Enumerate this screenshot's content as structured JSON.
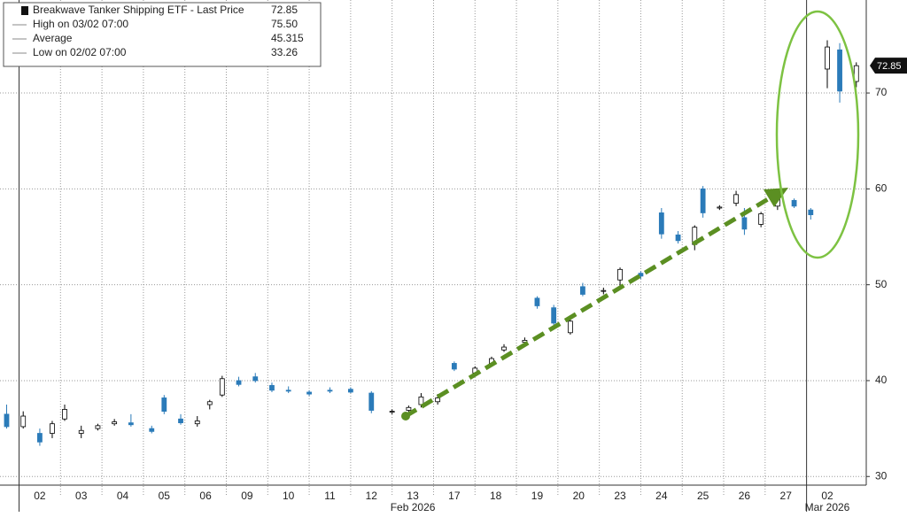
{
  "chart_data": {
    "type": "candlestick",
    "legend": [
      {
        "label": "Breakwave Tanker Shipping ETF - Last Price",
        "value": "72.85"
      },
      {
        "label": "High on 03/02 07:00",
        "value": "75.50"
      },
      {
        "label": "Average",
        "value": "45.315"
      },
      {
        "label": "Low on 02/02 07:00",
        "value": "33.26"
      }
    ],
    "last_price": 72.85,
    "categories": [
      "02",
      "03",
      "04",
      "05",
      "06",
      "09",
      "10",
      "11",
      "12",
      "13",
      "17",
      "18",
      "19",
      "20",
      "23",
      "24",
      "25",
      "26",
      "27",
      "02"
    ],
    "month_labels": [
      {
        "index": 9,
        "label": "Feb 2026"
      },
      {
        "index": 19,
        "label": "Mar 2026"
      }
    ],
    "xlim": [
      -0.96,
      19.94
    ],
    "ylim": [
      29.1,
      79.7
    ],
    "yticks": [
      30,
      40,
      50,
      60,
      70
    ],
    "grid": true,
    "up_color": "#ffffff",
    "down_color": "#2b7bb9",
    "x": [
      -0.8,
      -0.4,
      0.0,
      0.3,
      0.6,
      1.0,
      1.4,
      1.8,
      2.2,
      2.7,
      3.0,
      3.4,
      3.8,
      4.1,
      4.4,
      4.8,
      5.2,
      5.6,
      6.0,
      6.5,
      7.0,
      7.5,
      8.0,
      8.5,
      8.9,
      9.2,
      9.6,
      10.0,
      10.5,
      10.9,
      11.2,
      11.7,
      12.0,
      12.4,
      12.8,
      13.1,
      13.6,
      14.0,
      14.5,
      15.0,
      15.4,
      15.8,
      16.0,
      16.4,
      16.8,
      17.0,
      17.4,
      17.8,
      18.2,
      18.6,
      19.0,
      19.3,
      19.7
    ],
    "open": [
      36.5,
      35.2,
      34.5,
      34.5,
      36,
      34.5,
      35,
      35.5,
      35.6,
      35,
      38.2,
      36,
      35.5,
      37.5,
      38.5,
      40,
      40.4,
      39.5,
      39,
      38.8,
      39,
      39.1,
      38.7,
      36.8,
      36.9,
      37.5,
      37.8,
      41.8,
      40.8,
      41.8,
      43.2,
      44,
      48.6,
      47.6,
      45,
      49.8,
      49.4,
      50.5,
      51.2,
      57.5,
      55.2,
      54.2,
      60,
      58,
      58.5,
      57,
      56.3,
      58.2,
      58.8,
      57.8,
      72.5,
      74.5,
      71.2
    ],
    "high": [
      37.5,
      36.8,
      35,
      35.8,
      37.5,
      35.3,
      35.5,
      36,
      36.5,
      35.3,
      38.5,
      36.5,
      36.3,
      38,
      40.5,
      40.4,
      40.8,
      39.8,
      39.4,
      39,
      39.3,
      39.3,
      38.9,
      37,
      37.4,
      38.7,
      38.6,
      42,
      41.5,
      42.5,
      43.8,
      44.5,
      48.8,
      47.9,
      46.5,
      50.2,
      49.7,
      51.8,
      51.4,
      58,
      55.6,
      56.2,
      60.3,
      58.3,
      59.8,
      58,
      57.6,
      59.2,
      59,
      58,
      75.5,
      75.2,
      73.2
    ],
    "low": [
      35,
      35,
      33.2,
      34,
      35.8,
      34,
      34.8,
      35.3,
      35.2,
      34.5,
      36.5,
      35.4,
      35.2,
      37,
      38.3,
      39.4,
      39.8,
      38.8,
      38.7,
      38.4,
      38.7,
      38.7,
      36.6,
      36.5,
      36.7,
      37.2,
      37.5,
      41,
      40.5,
      41.6,
      43,
      43.8,
      47.5,
      45.5,
      44.8,
      48.8,
      49,
      49.5,
      50.6,
      54.8,
      54.3,
      53.6,
      57,
      57.8,
      58.2,
      55.2,
      56,
      57.8,
      58,
      56.8,
      70.5,
      69,
      70.6
    ],
    "close": [
      35.2,
      36.3,
      33.6,
      35.5,
      37,
      34.8,
      35.3,
      35.7,
      35.4,
      34.7,
      36.8,
      35.6,
      35.8,
      37.8,
      40.2,
      39.6,
      40,
      39,
      38.9,
      38.6,
      38.9,
      38.8,
      36.9,
      36.8,
      37.2,
      38.3,
      38.2,
      41.2,
      41.3,
      42.3,
      43.5,
      44.2,
      47.8,
      46,
      46.2,
      49,
      49.4,
      51.6,
      50.9,
      55.3,
      54.6,
      56,
      57.5,
      58.1,
      59.4,
      55.8,
      57.4,
      59,
      58.2,
      57.3,
      74.8,
      70.2,
      72.85
    ]
  }
}
